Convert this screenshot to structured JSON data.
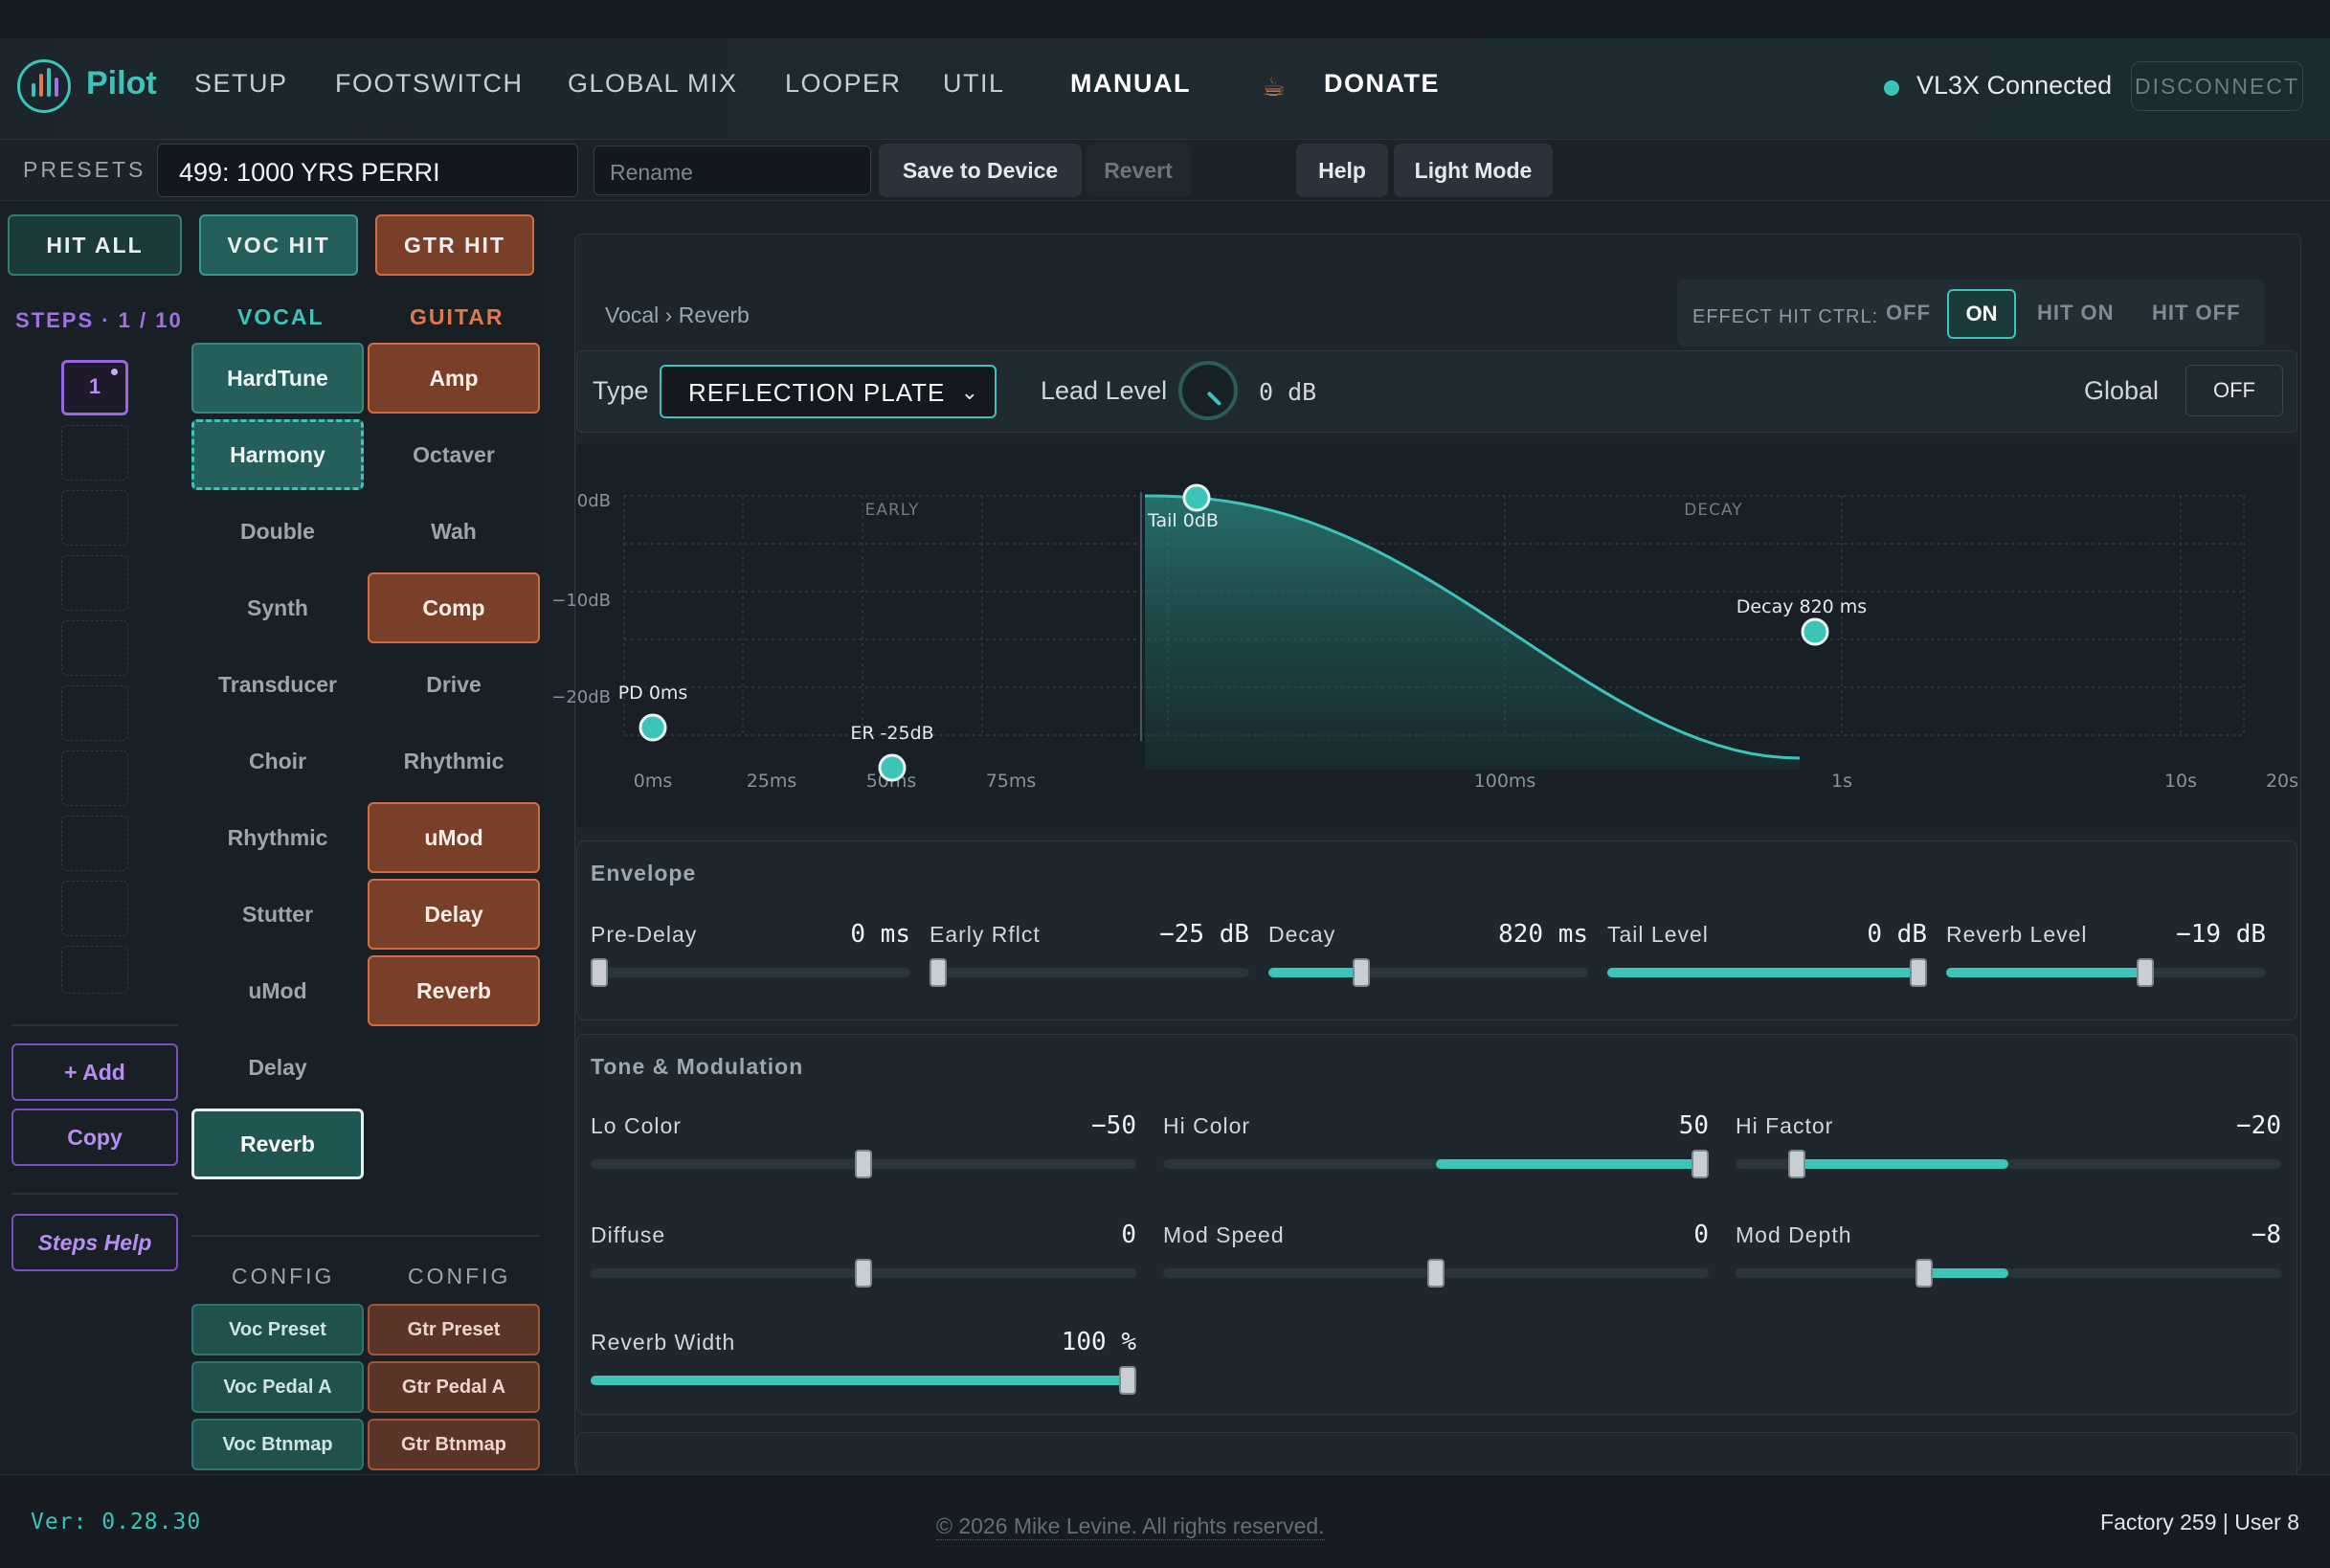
{
  "nav": {
    "brand": "Pilot",
    "items": [
      "SETUP",
      "FOOTSWITCH",
      "GLOBAL MIX",
      "LOOPER",
      "UTIL",
      "MANUAL"
    ],
    "donate": "DONATE",
    "connection_status": "VL3X Connected",
    "disconnect": "DISCONNECT"
  },
  "presets": {
    "label": "PRESETS",
    "current": "499: 1000 YRS PERRI",
    "rename_placeholder": "Rename",
    "save": "Save to Device",
    "revert": "Revert",
    "help": "Help",
    "light_mode": "Light Mode"
  },
  "hits": {
    "all": "HIT ALL",
    "voc": "VOC HIT",
    "gtr": "GTR HIT"
  },
  "steps": {
    "label": "STEPS · 1 / 10",
    "active": "1",
    "add": "+ Add",
    "copy": "Copy",
    "help": "Steps Help"
  },
  "vocal": {
    "title": "VOCAL",
    "effects": [
      "HardTune",
      "Harmony",
      "Double",
      "Synth",
      "Transducer",
      "Choir",
      "Rhythmic",
      "Stutter",
      "uMod",
      "Delay",
      "Reverb"
    ],
    "config_title": "CONFIG",
    "config": [
      "Voc Preset",
      "Voc Pedal A",
      "Voc Btnmap"
    ]
  },
  "guitar": {
    "title": "GUITAR",
    "effects": [
      "Amp",
      "Octaver",
      "Wah",
      "Comp",
      "Drive",
      "Rhythmic",
      "uMod",
      "Delay",
      "Reverb"
    ],
    "config_title": "CONFIG",
    "config": [
      "Gtr Preset",
      "Gtr Pedal A",
      "Gtr Btnmap"
    ]
  },
  "editor": {
    "breadcrumb": "Vocal › Reverb",
    "effect_hit_ctrl": {
      "label": "EFFECT HIT CTRL:",
      "off": "OFF",
      "on": "ON",
      "hit_on": "HIT ON",
      "hit_off": "HIT OFF"
    },
    "type_label": "Type",
    "type_value": "REFLECTION PLATE",
    "lead_level_label": "Lead Level",
    "lead_level_value": "0 dB",
    "global_label": "Global",
    "global_value": "OFF"
  },
  "graph": {
    "y_ticks": [
      "0dB",
      "−10dB",
      "−20dB"
    ],
    "x_ticks": [
      "0ms",
      "25ms",
      "50ms",
      "75ms",
      "100ms",
      "1s",
      "10s",
      "20s"
    ],
    "regions": [
      "EARLY",
      "DECAY"
    ],
    "points": [
      {
        "label": "PD 0ms"
      },
      {
        "label": "ER -25dB"
      },
      {
        "label": "Tail 0dB"
      },
      {
        "label": "Decay 820 ms"
      }
    ]
  },
  "envelope": {
    "title": "Envelope",
    "controls": [
      {
        "label": "Pre-Delay",
        "value": "0 ms",
        "level": 0.0
      },
      {
        "label": "Early Rflct",
        "value": "−25 dB",
        "level": 0.0
      },
      {
        "label": "Decay",
        "value": "820 ms",
        "level": 0.28
      },
      {
        "label": "Tail Level",
        "value": "0 dB",
        "level": 1.0
      },
      {
        "label": "Reverb Level",
        "value": "−19 dB",
        "level": 0.63
      }
    ]
  },
  "tone": {
    "title": "Tone & Modulation",
    "controls": [
      {
        "label": "Lo Color",
        "value": "−50",
        "level": 0.5
      },
      {
        "label": "Hi Color",
        "value": "50",
        "level": 1.0
      },
      {
        "label": "Hi Factor",
        "value": "−20",
        "level": 0.1
      },
      {
        "label": "Diffuse",
        "value": "0",
        "level": 0.5
      },
      {
        "label": "Mod Speed",
        "value": "0",
        "level": 0.5
      },
      {
        "label": "Mod Depth",
        "value": "−8",
        "level": 0.34
      },
      {
        "label": "Reverb Width",
        "value": "100 %",
        "level": 1.0
      }
    ]
  },
  "footer": {
    "version": "Ver: 0.28.30",
    "copyright": "© 2026 Mike Levine. All rights reserved.",
    "counts": "Factory 259 | User 8"
  }
}
